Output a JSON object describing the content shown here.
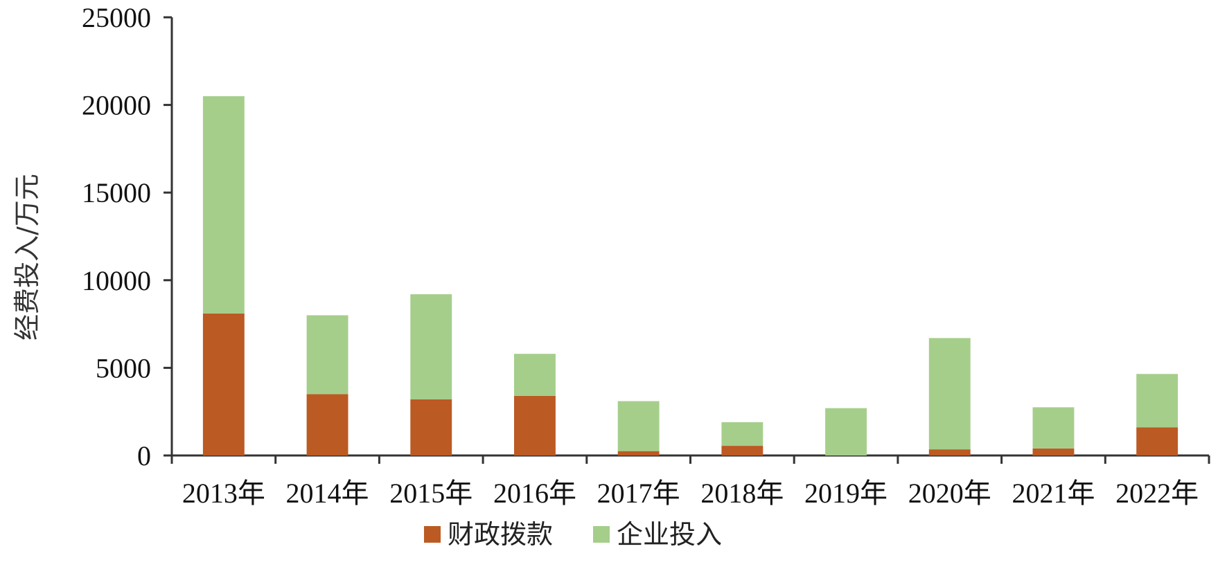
{
  "chart_data": {
    "type": "bar",
    "stacked": true,
    "categories": [
      "2013年",
      "2014年",
      "2015年",
      "2016年",
      "2017年",
      "2018年",
      "2019年",
      "2020年",
      "2021年",
      "2022年"
    ],
    "series": [
      {
        "name": "财政拨款",
        "color": "#BC5A23",
        "values": [
          8100,
          3500,
          3200,
          3400,
          250,
          550,
          0,
          350,
          400,
          1600
        ]
      },
      {
        "name": "企业投入",
        "color": "#A5CE8B",
        "values": [
          12400,
          4500,
          6000,
          2400,
          2850,
          1350,
          2700,
          6350,
          2350,
          3050
        ]
      }
    ],
    "ylabel": "经费投入/万元",
    "xlabel": "",
    "ylim": [
      0,
      25000
    ],
    "yticks": [
      "0",
      "5000",
      "10000",
      "15000",
      "20000",
      "25000"
    ],
    "grid": false,
    "legend_position": "bottom"
  }
}
